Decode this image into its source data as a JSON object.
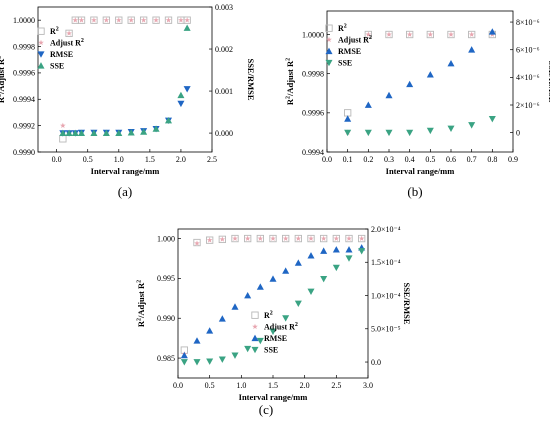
{
  "chart_data": [
    {
      "type": "scatter",
      "caption": "(a)",
      "xlabel": "Interval range/mm",
      "ylabel_left": "R²/Adjust R²",
      "ylabel_right": "SSE/RMSE",
      "xlim": [
        -0.3,
        2.5
      ],
      "ylim_left": [
        0.999,
        1.0001
      ],
      "ylim_right": [
        -0.00045,
        0.003
      ],
      "x_ticks": [
        0.0,
        0.5,
        1.0,
        1.5,
        2.0,
        2.5
      ],
      "x_tick_labels": [
        "0.0",
        "0.5",
        "1.0",
        "1.5",
        "2.0",
        "2.5"
      ],
      "y_left_ticks": [
        0.999,
        0.9992,
        0.9994,
        0.9996,
        0.9998,
        1.0
      ],
      "y_left_tick_labels": [
        "0.9990",
        "0.9992",
        "0.9994",
        "0.9996",
        "0.9998",
        "1.0000"
      ],
      "y_right_ticks": [
        0.0,
        0.001,
        0.002,
        0.003
      ],
      "y_right_tick_labels": [
        "0.000",
        "0.001",
        "0.002",
        "0.003"
      ],
      "legend_position": "left-middle",
      "series": [
        {
          "name": "R²",
          "axis": "left",
          "marker": "square-open",
          "color": "#b8b8b8",
          "x": [
            0.1,
            0.2,
            0.3,
            0.4,
            0.6,
            0.8,
            1.0,
            1.2,
            1.4,
            1.6,
            1.8,
            2.0,
            2.1
          ],
          "y": [
            0.9991,
            0.9999,
            1.0,
            1.0,
            1.0,
            1.0,
            1.0,
            1.0,
            1.0,
            1.0,
            1.0,
            1.0,
            1.0
          ]
        },
        {
          "name": "Adjust R²",
          "axis": "left",
          "marker": "star",
          "color": "#e8a6b0",
          "x": [
            0.1,
            0.2,
            0.3,
            0.4,
            0.6,
            0.8,
            1.0,
            1.2,
            1.4,
            1.6,
            1.8,
            2.0,
            2.1
          ],
          "y": [
            0.9992,
            0.9999,
            1.0,
            1.0,
            1.0,
            1.0,
            1.0,
            1.0,
            1.0,
            1.0,
            1.0,
            1.0,
            1.0
          ]
        },
        {
          "name": "RMSE",
          "axis": "right",
          "marker": "triangle-down",
          "color": "#1f66c4",
          "x": [
            0.1,
            0.2,
            0.3,
            0.4,
            0.6,
            0.8,
            1.0,
            1.2,
            1.4,
            1.6,
            1.8,
            2.0,
            2.1
          ],
          "y": [
            0.0,
            0.0,
            0.0,
            1e-05,
            1e-05,
            1e-05,
            1e-05,
            3e-05,
            5e-05,
            0.0001,
            0.0003,
            0.0007,
            0.00105
          ]
        },
        {
          "name": "SSE",
          "axis": "right",
          "marker": "triangle-up",
          "color": "#3aa383",
          "x": [
            0.1,
            0.2,
            0.3,
            0.4,
            0.6,
            0.8,
            1.0,
            1.2,
            1.4,
            1.6,
            1.8,
            2.0,
            2.1
          ],
          "y": [
            0.0,
            0.0,
            0.0,
            0.0,
            0.0,
            0.0,
            0.0,
            1e-05,
            3e-05,
            0.0001,
            0.0003,
            0.0009,
            0.0025
          ]
        }
      ]
    },
    {
      "type": "scatter",
      "caption": "(b)",
      "xlabel": "Interval range/mm",
      "ylabel_left": "R²/Adjust R²",
      "ylabel_right": "SSE/RMSE",
      "xlim": [
        0.0,
        0.9
      ],
      "ylim_left": [
        0.9994,
        1.00012
      ],
      "ylim_right": [
        -1.4e-06,
        8.8e-06
      ],
      "x_ticks": [
        0.0,
        0.1,
        0.2,
        0.3,
        0.4,
        0.5,
        0.6,
        0.7,
        0.8,
        0.9
      ],
      "x_tick_labels": [
        "0.0",
        "0.1",
        "0.2",
        "0.3",
        "0.4",
        "0.5",
        "0.6",
        "0.7",
        "0.8",
        "0.9"
      ],
      "y_left_ticks": [
        0.9994,
        0.9996,
        0.9998,
        1.0
      ],
      "y_left_tick_labels": [
        "0.9994",
        "0.9996",
        "0.9998",
        "1.0000"
      ],
      "y_right_ticks": [
        0,
        2e-06,
        4e-06,
        6e-06,
        8e-06
      ],
      "y_right_tick_labels": [
        "0",
        "2×10⁻⁶",
        "4×10⁻⁶",
        "6×10⁻⁶",
        "8×10⁻⁶"
      ],
      "legend_position": "top-left",
      "series": [
        {
          "name": "R²",
          "axis": "left",
          "marker": "square-open",
          "color": "#b8b8b8",
          "x": [
            0.1,
            0.2,
            0.3,
            0.4,
            0.5,
            0.6,
            0.7,
            0.8
          ],
          "y": [
            0.9996,
            1.0,
            1.0,
            1.0,
            1.0,
            1.0,
            1.0,
            1.0
          ]
        },
        {
          "name": "Adjust R²",
          "axis": "left",
          "marker": "star",
          "color": "#e8a6b0",
          "x": [
            0.1,
            0.2,
            0.3,
            0.4,
            0.5,
            0.6,
            0.7,
            0.8
          ],
          "y": [
            0.9995,
            1.0,
            1.0,
            1.0,
            1.0,
            1.0,
            1.0,
            1.0
          ]
        },
        {
          "name": "RMSE",
          "axis": "right",
          "marker": "triangle-up",
          "color": "#1f66c4",
          "x": [
            0.1,
            0.2,
            0.3,
            0.4,
            0.5,
            0.6,
            0.7,
            0.8
          ],
          "y": [
            1e-06,
            2e-06,
            2.7e-06,
            3.5e-06,
            4.2e-06,
            5e-06,
            6e-06,
            7.3e-06
          ]
        },
        {
          "name": "SSE",
          "axis": "right",
          "marker": "triangle-down",
          "color": "#3aa383",
          "x": [
            0.1,
            0.2,
            0.3,
            0.4,
            0.5,
            0.6,
            0.7,
            0.8
          ],
          "y": [
            0.0,
            0.0,
            0.0,
            0.0,
            1.5e-07,
            3e-07,
            5.5e-07,
            1e-06
          ]
        }
      ]
    },
    {
      "type": "scatter",
      "caption": "(c)",
      "xlabel": "Interval range/mm",
      "ylabel_left": "R²/Adjust R²",
      "ylabel_right": "SSE/RMSE",
      "xlim": [
        0.0,
        3.0
      ],
      "ylim_left": [
        0.9825,
        1.0012
      ],
      "ylim_right": [
        -2.4e-05,
        0.0002
      ],
      "x_ticks": [
        0.0,
        0.5,
        1.0,
        1.5,
        2.0,
        2.5,
        3.0
      ],
      "x_tick_labels": [
        "0.0",
        "0.5",
        "1.0",
        "1.5",
        "2.0",
        "2.5",
        "3.0"
      ],
      "y_left_ticks": [
        0.985,
        0.99,
        0.995,
        1.0
      ],
      "y_left_tick_labels": [
        "0.985",
        "0.990",
        "0.995",
        "1.000"
      ],
      "y_right_ticks": [
        0,
        5e-05,
        0.0001,
        0.00015,
        0.0002
      ],
      "y_right_tick_labels": [
        "0.0",
        "5.0×10⁻⁵",
        "1.0×10⁻⁴",
        "1.5×10⁻⁴",
        "2.0×10⁻⁴"
      ],
      "legend_position": "bottom-right",
      "series": [
        {
          "name": "R²",
          "axis": "left",
          "marker": "square-open",
          "color": "#b8b8b8",
          "x": [
            0.1,
            0.3,
            0.5,
            0.7,
            0.9,
            1.1,
            1.3,
            1.5,
            1.7,
            1.9,
            2.1,
            2.3,
            2.5,
            2.7,
            2.9
          ],
          "y": [
            0.986,
            0.9995,
            0.9998,
            0.9999,
            1.0,
            1.0,
            1.0,
            1.0,
            1.0,
            1.0,
            1.0,
            1.0,
            1.0,
            1.0,
            1.0
          ]
        },
        {
          "name": "Adjust R²",
          "axis": "left",
          "marker": "star",
          "color": "#e8a6b0",
          "x": [
            0.1,
            0.3,
            0.5,
            0.7,
            0.9,
            1.1,
            1.3,
            1.5,
            1.7,
            1.9,
            2.1,
            2.3,
            2.5,
            2.7,
            2.9
          ],
          "y": [
            0.9855,
            0.9994,
            0.9998,
            0.9999,
            1.0,
            1.0,
            1.0,
            1.0,
            1.0,
            1.0,
            1.0,
            1.0,
            1.0,
            1.0,
            1.0
          ]
        },
        {
          "name": "RMSE",
          "axis": "right",
          "marker": "triangle-up",
          "color": "#1f66c4",
          "x": [
            0.1,
            0.3,
            0.5,
            0.7,
            0.9,
            1.1,
            1.3,
            1.5,
            1.7,
            1.9,
            2.1,
            2.3,
            2.5,
            2.7,
            2.9
          ],
          "y": [
            1e-05,
            3.2e-05,
            4.7e-05,
            6.5e-05,
            8.3e-05,
            0.0001,
            0.000113,
            0.000125,
            0.000137,
            0.000149,
            0.00016,
            0.000167,
            0.000169,
            0.000169,
            0.000172
          ]
        },
        {
          "name": "SSE",
          "axis": "right",
          "marker": "triangle-down",
          "color": "#3aa383",
          "x": [
            0.1,
            0.3,
            0.5,
            0.7,
            0.9,
            1.1,
            1.3,
            1.5,
            1.7,
            1.9,
            2.1,
            2.3,
            2.5,
            2.7,
            2.9
          ],
          "y": [
            0.0,
            0.0,
            1e-06,
            4e-06,
            1e-05,
            2e-05,
            3.2e-05,
            4.6e-05,
            6.6e-05,
            8.8e-05,
            0.000106,
            0.000125,
            0.000142,
            0.000156,
            0.000167
          ]
        }
      ]
    }
  ]
}
